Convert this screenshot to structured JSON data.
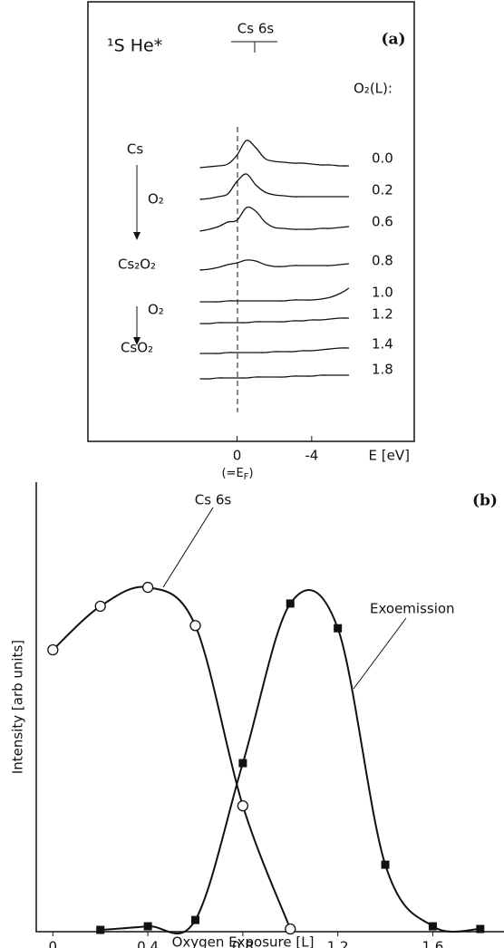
{
  "chart_data": [
    {
      "type": "spectra",
      "panel_label": "(a)",
      "title": "¹S He*",
      "peak_label": "Cs 6s",
      "legend_title": "O₂(L):",
      "xlabel": "E [eV]",
      "xnote": "(=E",
      "xnote_sub": "F",
      "xnote_end": ")",
      "annotations": [
        "Cs",
        "O₂",
        "Cs₂O₂",
        "O₂",
        "CsO₂"
      ],
      "xlim": [
        8,
        -9.5
      ],
      "xticks": [
        0,
        -4
      ],
      "x": [
        2,
        1.5,
        1,
        0.5,
        0,
        -0.5,
        -1,
        -1.5,
        -2,
        -2.5,
        -3,
        -3.5,
        -4,
        -4.5,
        -5,
        -5.5,
        -6
      ],
      "series": [
        {
          "name": "0.0",
          "values": [
            0,
            1,
            2,
            4,
            14,
            30,
            22,
            10,
            7,
            6,
            5,
            5,
            4,
            3,
            3,
            2,
            2
          ]
        },
        {
          "name": "0.2",
          "values": [
            0,
            1,
            3,
            6,
            20,
            28,
            16,
            8,
            5,
            4,
            3,
            3,
            3,
            3,
            3,
            3,
            3
          ]
        },
        {
          "name": "0.6",
          "values": [
            0,
            2,
            5,
            10,
            12,
            26,
            22,
            10,
            4,
            3,
            2,
            2,
            2,
            3,
            3,
            4,
            5
          ]
        },
        {
          "name": "0.8",
          "values": [
            0,
            1,
            3,
            6,
            8,
            11,
            10,
            6,
            4,
            4,
            5,
            5,
            5,
            5,
            5,
            6,
            7
          ]
        },
        {
          "name": "1.0",
          "values": [
            0,
            0,
            0,
            1,
            1,
            1,
            1,
            1,
            1,
            1,
            2,
            2,
            2,
            3,
            5,
            9,
            15
          ]
        },
        {
          "name": "1.2",
          "values": [
            0,
            0,
            1,
            1,
            1,
            1,
            2,
            2,
            2,
            2,
            3,
            3,
            4,
            4,
            5,
            6,
            6
          ]
        },
        {
          "name": "1.4",
          "values": [
            0,
            0,
            0,
            1,
            1,
            1,
            1,
            1,
            2,
            2,
            2,
            3,
            3,
            4,
            5,
            6,
            6
          ]
        },
        {
          "name": "1.8",
          "values": [
            0,
            0,
            1,
            1,
            1,
            1,
            2,
            2,
            2,
            2,
            3,
            3,
            3,
            4,
            4,
            4,
            4
          ]
        }
      ]
    },
    {
      "type": "line",
      "panel_label": "(b)",
      "xlabel": "Oxygen Exposure [L]",
      "ylabel": "Intensity [arb units]",
      "xlim": [
        -0.07,
        1.9
      ],
      "xticks": [
        0,
        0.4,
        0.8,
        1.2,
        1.6
      ],
      "ylim": [
        0,
        100
      ],
      "series": [
        {
          "name": "Cs 6s",
          "marker": "circle",
          "x": [
            0,
            0.2,
            0.4,
            0.6,
            0.8,
            1.0
          ],
          "values": [
            62.7,
            72.4,
            76.6,
            68.1,
            28.0,
            0.6
          ]
        },
        {
          "name": "Exoemission",
          "marker": "square",
          "x": [
            0.2,
            0.4,
            0.6,
            0.8,
            1.0,
            1.2,
            1.4,
            1.6,
            1.8
          ],
          "values": [
            0.4,
            1.2,
            2.6,
            37.5,
            73,
            67.5,
            14.9,
            1.2,
            0.6
          ]
        }
      ]
    }
  ]
}
